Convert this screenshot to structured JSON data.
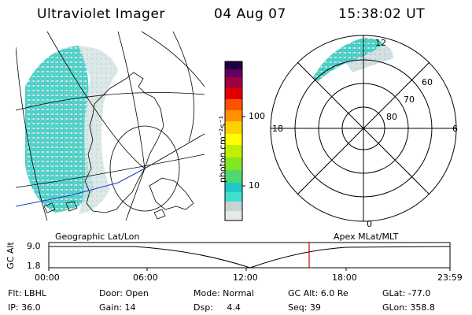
{
  "header": {
    "instrument": "Ultraviolet Imager",
    "date": "04 Aug 07",
    "time": "15:38:02 UT"
  },
  "colorbar": {
    "unit_label": "photon cm⁻²s⁻¹",
    "ticks": [
      "100",
      "10"
    ],
    "scale": "log",
    "colors": [
      "#e8e8e8",
      "#c8c8c8",
      "#40e0d0",
      "#20c8c8",
      "#60e060",
      "#a0f000",
      "#ffff00",
      "#ffb000",
      "#ff6000",
      "#e00000",
      "#a00040",
      "#600060",
      "#200040"
    ]
  },
  "polar": {
    "lat_labels": [
      "80",
      "70",
      "60"
    ],
    "mlt_labels": {
      "top": "12",
      "left": "18",
      "right": "6",
      "bottom": "0"
    }
  },
  "timeline": {
    "left_label": "Geographic Lat/Lon",
    "right_label": "Apex MLat/MLT",
    "axis_title": "GC Alt",
    "y_ticks": [
      "9.0",
      "1.8"
    ],
    "x_ticks": [
      "00:00",
      "06:00",
      "12:00",
      "18:00",
      "23:59"
    ],
    "marker_color": "#cc0000",
    "marker_time": "15:38"
  },
  "info": {
    "row1": [
      "Flt: LBHL",
      "Door: Open",
      "Mode: Normal",
      "GC Alt: 6.0 Re",
      "GLat: -77.0"
    ],
    "row2": [
      "IP: 36.0",
      "Gain: 14",
      "Dsp:     4.4",
      "Seq: 39",
      "GLon: 358.8"
    ]
  },
  "colors": {
    "coast": "#000000",
    "terminator": "#2233cc",
    "grid": "#000000"
  }
}
